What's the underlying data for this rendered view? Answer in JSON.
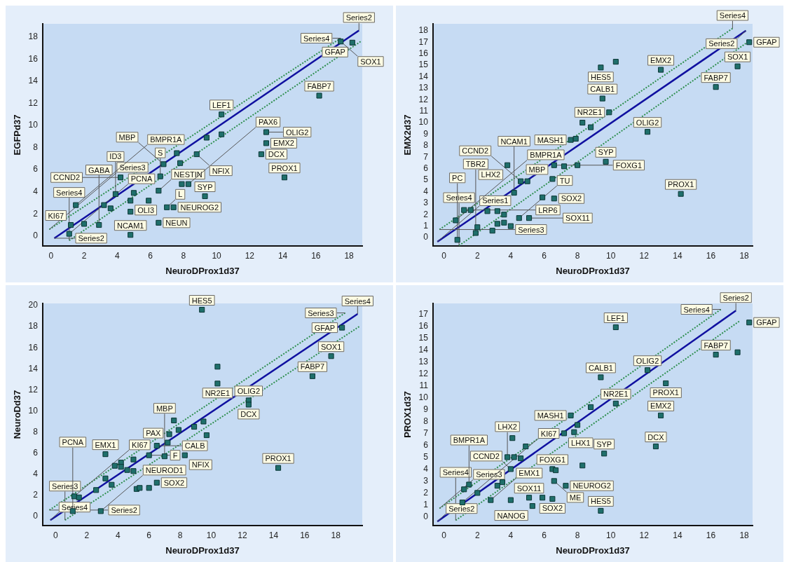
{
  "chart_data": [
    {
      "type": "scatter",
      "xlabel": "NeuroDProx1d37",
      "ylabel": "EGFPd37",
      "xlim": [
        -0.5,
        18.8
      ],
      "ylim": [
        -0.9,
        19.2
      ],
      "xticks": [
        0,
        2,
        4,
        6,
        8,
        10,
        12,
        14,
        16,
        18
      ],
      "yticks": [
        0,
        2,
        4,
        6,
        8,
        10,
        12,
        14,
        16,
        18
      ],
      "series": [
        {
          "type": "scatter",
          "marker": "square",
          "color": "#1f6f6b",
          "x": [
            17.5,
            18.2,
            16.2,
            10.3,
            10.3,
            9.4,
            13.0,
            13.0,
            12.7,
            8.8,
            6.8,
            7.6,
            7.8,
            7.9,
            8.3,
            6.6,
            14.1,
            4.2,
            3.9,
            5.0,
            6.5,
            4.8,
            4.8,
            5.9,
            7.0,
            7.4,
            9.3,
            1.5,
            3.2,
            3.6,
            2.9,
            1.2,
            2.0,
            6.5,
            4.8,
            1.1
          ],
          "values": [
            17.6,
            17.5,
            12.7,
            11.0,
            9.2,
            8.9,
            9.4,
            8.4,
            7.4,
            7.4,
            6.5,
            7.5,
            6.6,
            4.7,
            4.7,
            5.4,
            5.3,
            5.3,
            3.8,
            3.9,
            4.1,
            3.2,
            2.2,
            3.2,
            2.6,
            2.6,
            3.6,
            2.8,
            2.8,
            2.5,
            1.0,
            1.0,
            1.1,
            1.2,
            0.1,
            0.2
          ]
        },
        {
          "type": "line",
          "color": "#1010a0",
          "line_style": "solid",
          "x": [
            0.2,
            18.6
          ],
          "values": [
            -0.2,
            18.6
          ]
        },
        {
          "type": "line",
          "color": "#2f8f4f",
          "line_style": "dotted",
          "x": [
            -0.1,
            17.5
          ],
          "values": [
            0.6,
            17.9
          ]
        },
        {
          "type": "line",
          "color": "#2f8f4f",
          "line_style": "dotted",
          "x": [
            1.1,
            18.7
          ],
          "values": [
            -0.4,
            17.6
          ]
        }
      ],
      "annotations": [
        {
          "text": "SOX1",
          "x": 17.5,
          "y": 17.6
        },
        {
          "text": "GFAP",
          "x": 18.2,
          "y": 17.5
        },
        {
          "text": "FABP7",
          "x": 16.2,
          "y": 12.7
        },
        {
          "text": "LEF1",
          "x": 10.3,
          "y": 11.0
        },
        {
          "text": "OLIG2",
          "x": 13.0,
          "y": 9.4
        },
        {
          "text": "EMX2",
          "x": 13.0,
          "y": 8.4
        },
        {
          "text": "DCX",
          "x": 12.7,
          "y": 7.4
        },
        {
          "text": "NFIX",
          "x": 8.8,
          "y": 7.4
        },
        {
          "text": "MBP",
          "x": 6.8,
          "y": 6.5
        },
        {
          "text": "PAX6",
          "x": 8.3,
          "y": 4.7
        },
        {
          "text": "S",
          "x": 6.6,
          "y": 5.4
        },
        {
          "text": "PROX1",
          "x": 14.1,
          "y": 5.3
        },
        {
          "text": "CCND2",
          "x": 4.2,
          "y": 5.3
        },
        {
          "text": "ID3",
          "x": 3.9,
          "y": 3.8
        },
        {
          "text": "NESTIN",
          "x": 6.5,
          "y": 4.1
        },
        {
          "text": "OLI3",
          "x": 4.8,
          "y": 3.2
        },
        {
          "text": "L",
          "x": 7.0,
          "y": 2.6
        },
        {
          "text": "NEUROG2",
          "x": 7.4,
          "y": 2.6
        },
        {
          "text": "SYP",
          "x": 9.3,
          "y": 3.6
        },
        {
          "text": "BMPR1A",
          "x": 1.5,
          "y": 2.8
        },
        {
          "text": "GABA",
          "x": 2.9,
          "y": 1.0
        },
        {
          "text": "KI67",
          "x": 1.2,
          "y": 1.0
        },
        {
          "text": "NEUN",
          "x": 6.5,
          "y": 1.2
        },
        {
          "text": "NCAM1",
          "x": 4.8,
          "y": 0.1
        },
        {
          "text": "PCNA",
          "x": 1.1,
          "y": 0.2
        },
        {
          "text": "Series3",
          "x": -0.1,
          "y": 0.6
        },
        {
          "text": "Series2",
          "x": 0.2,
          "y": -0.2
        },
        {
          "text": "Series4",
          "x": 1.1,
          "y": -0.4
        },
        {
          "text": "Series4",
          "x": 17.5,
          "y": 17.9
        },
        {
          "text": "Series2",
          "x": 18.6,
          "y": 18.6
        }
      ]
    },
    {
      "type": "scatter",
      "xlabel": "NeuroDProx1d37",
      "ylabel": "EMX2d37",
      "xlim": [
        -0.66,
        18.5
      ],
      "ylim": [
        -0.73,
        18.6
      ],
      "xticks": [
        0,
        2,
        4,
        6,
        8,
        10,
        12,
        14,
        16,
        18
      ],
      "yticks": [
        0,
        1,
        2,
        3,
        4,
        5,
        6,
        7,
        8,
        9,
        10,
        11,
        12,
        13,
        14,
        15,
        16,
        17,
        18
      ],
      "series": [
        {
          "type": "scatter",
          "marker": "square",
          "color": "#1f6f6b",
          "x": [
            18.3,
            17.6,
            16.3,
            9.4,
            10.3,
            13.0,
            9.5,
            9.9,
            12.2,
            8.3,
            8.8,
            7.6,
            7.9,
            9.7,
            8.0,
            6.6,
            7.2,
            3.8,
            4.6,
            5.0,
            6.5,
            4.2,
            5.9,
            6.6,
            14.2,
            5.1,
            4.5,
            1.2,
            1.6,
            0.7,
            2.0,
            3.2,
            3.6,
            3.2,
            3.6,
            4.0,
            2.9,
            2.6,
            1.9,
            0.8
          ],
          "values": [
            17.0,
            14.9,
            13.1,
            14.8,
            15.3,
            14.6,
            12.1,
            10.9,
            9.2,
            10.0,
            9.6,
            8.5,
            8.6,
            6.6,
            6.3,
            6.3,
            6.2,
            6.3,
            4.9,
            4.9,
            5.1,
            3.9,
            3.5,
            3.4,
            3.8,
            1.7,
            1.7,
            2.4,
            2.4,
            1.5,
            0.9,
            2.3,
            2.0,
            1.2,
            1.3,
            1.0,
            0.6,
            2.3,
            0.4,
            -0.2
          ]
        },
        {
          "type": "line",
          "color": "#1010a0",
          "line_style": "solid",
          "x": [
            -0.4,
            18.1
          ],
          "values": [
            -0.36,
            18.0
          ]
        },
        {
          "type": "line",
          "color": "#2f8f4f",
          "line_style": "dotted",
          "x": [
            -0.27,
            17.3
          ],
          "values": [
            0.7,
            18.2
          ]
        },
        {
          "type": "line",
          "color": "#2f8f4f",
          "line_style": "dotted",
          "x": [
            0.9,
            18.1
          ],
          "values": [
            -0.7,
            16.9
          ]
        }
      ],
      "annotations": [
        {
          "text": "GFAP",
          "x": 18.3,
          "y": 17.0
        },
        {
          "text": "SOX1",
          "x": 17.6,
          "y": 14.9
        },
        {
          "text": "FABP7",
          "x": 16.3,
          "y": 13.1
        },
        {
          "text": "HES5",
          "x": 9.4,
          "y": 14.8
        },
        {
          "text": "EMX2",
          "x": 13.0,
          "y": 14.6
        },
        {
          "text": "CALB1",
          "x": 9.5,
          "y": 12.1
        },
        {
          "text": "NR2E1",
          "x": 9.9,
          "y": 10.9
        },
        {
          "text": "OLIG2",
          "x": 12.2,
          "y": 9.2
        },
        {
          "text": "MASH1",
          "x": 7.6,
          "y": 8.5
        },
        {
          "text": "SYP",
          "x": 9.7,
          "y": 6.6
        },
        {
          "text": "FOXG1",
          "x": 6.6,
          "y": 6.3
        },
        {
          "text": "LHX2",
          "x": 3.8,
          "y": 6.3
        },
        {
          "text": "CCND2",
          "x": 4.6,
          "y": 4.9
        },
        {
          "text": "MBP",
          "x": 6.5,
          "y": 5.1
        },
        {
          "text": "NCAM1",
          "x": 4.2,
          "y": 3.9
        },
        {
          "text": "SOX2",
          "x": 6.6,
          "y": 3.4
        },
        {
          "text": "PROX1",
          "x": 14.2,
          "y": 3.8
        },
        {
          "text": "SOX11",
          "x": 5.1,
          "y": 1.7
        },
        {
          "text": "TU",
          "x": 4.5,
          "y": 1.7
        },
        {
          "text": "LRP6",
          "x": 1.2,
          "y": 2.4
        },
        {
          "text": "BMPR1A",
          "x": 0.7,
          "y": 1.5
        },
        {
          "text": "TBR2",
          "x": 1.9,
          "y": 0.4
        },
        {
          "text": "PC",
          "x": 0.8,
          "y": -0.2
        },
        {
          "text": "Series1",
          "x": -0.4,
          "y": -0.36
        },
        {
          "text": "Series3",
          "x": -0.27,
          "y": 0.7
        },
        {
          "text": "Series4",
          "x": 0.9,
          "y": -0.7
        },
        {
          "text": "Series4",
          "x": 17.3,
          "y": 18.2
        },
        {
          "text": "Series2",
          "x": 18.1,
          "y": 18.0
        }
      ]
    },
    {
      "type": "scatter",
      "xlabel": "NeuroDProx1d37",
      "ylabel": "NeuroDd37",
      "xlim": [
        -0.83,
        19.7
      ],
      "ylim": [
        -0.87,
        20.2
      ],
      "xticks": [
        0,
        2,
        4,
        6,
        8,
        10,
        12,
        14,
        16,
        18
      ],
      "yticks": [
        0,
        2,
        4,
        6,
        8,
        10,
        12,
        14,
        16,
        18,
        20
      ],
      "series": [
        {
          "type": "scatter",
          "marker": "square",
          "color": "#1f6f6b",
          "x": [
            9.4,
            18.4,
            17.7,
            16.5,
            10.4,
            10.4,
            12.4,
            12.4,
            7.6,
            7.9,
            8.9,
            9.5,
            9.7,
            7.3,
            8.3,
            6.5,
            7.2,
            7.0,
            6.0,
            3.2,
            3.8,
            4.2,
            4.2,
            5.0,
            4.6,
            5.0,
            14.3,
            6.5,
            5.2,
            5.4,
            6.0,
            3.2,
            3.6,
            2.6,
            1.2,
            1.5,
            1.1,
            2.9
          ],
          "values": [
            19.6,
            17.9,
            15.2,
            13.3,
            14.2,
            12.6,
            11.0,
            10.6,
            9.1,
            8.2,
            8.5,
            9.0,
            7.7,
            7.8,
            5.8,
            6.7,
            7.0,
            5.7,
            5.8,
            5.9,
            4.8,
            5.1,
            4.7,
            5.4,
            4.4,
            4.3,
            4.6,
            3.2,
            2.6,
            2.7,
            2.7,
            3.6,
            3.0,
            2.5,
            1.9,
            1.8,
            0.5,
            0.5
          ]
        },
        {
          "type": "line",
          "color": "#1010a0",
          "line_style": "solid",
          "x": [
            -0.34,
            19.4
          ],
          "values": [
            -0.35,
            19.2
          ]
        },
        {
          "type": "line",
          "color": "#2f8f4f",
          "line_style": "dotted",
          "x": [
            -0.4,
            18.6
          ],
          "values": [
            0.6,
            19.3
          ]
        },
        {
          "type": "line",
          "color": "#2f8f4f",
          "line_style": "dotted",
          "x": [
            0.6,
            19.5
          ],
          "values": [
            -0.35,
            18.0
          ]
        }
      ],
      "annotations": [
        {
          "text": "HES5",
          "x": 9.4,
          "y": 19.6
        },
        {
          "text": "GFAP",
          "x": 18.4,
          "y": 17.9
        },
        {
          "text": "SOX1",
          "x": 17.7,
          "y": 15.2
        },
        {
          "text": "FABP7",
          "x": 16.5,
          "y": 13.3
        },
        {
          "text": "NR2E1",
          "x": 10.4,
          "y": 12.6
        },
        {
          "text": "OLIG2",
          "x": 12.4,
          "y": 11.0
        },
        {
          "text": "DCX",
          "x": 12.4,
          "y": 10.6
        },
        {
          "text": "NFIX",
          "x": 8.3,
          "y": 5.8
        },
        {
          "text": "CALB",
          "x": 6.5,
          "y": 6.7
        },
        {
          "text": "PAX",
          "x": 7.2,
          "y": 7.0
        },
        {
          "text": "MBP",
          "x": 7.0,
          "y": 5.7
        },
        {
          "text": "F",
          "x": 6.0,
          "y": 5.8
        },
        {
          "text": "EMX1",
          "x": 3.2,
          "y": 5.9
        },
        {
          "text": "PROX1",
          "x": 14.3,
          "y": 4.6
        },
        {
          "text": "SOX2",
          "x": 6.5,
          "y": 3.2
        },
        {
          "text": "KI67",
          "x": 1.2,
          "y": 1.9
        },
        {
          "text": "PCNA",
          "x": 1.1,
          "y": 0.5
        },
        {
          "text": "NEUROD1",
          "x": 2.9,
          "y": 0.5
        },
        {
          "text": "Series4",
          "x": -0.34,
          "y": -0.35
        },
        {
          "text": "Series2",
          "x": -0.4,
          "y": 0.6
        },
        {
          "text": "Series3",
          "x": 0.6,
          "y": -0.35
        },
        {
          "text": "Series3",
          "x": 18.6,
          "y": 19.3
        },
        {
          "text": "Series4",
          "x": 19.4,
          "y": 19.2
        }
      ]
    },
    {
      "type": "scatter",
      "xlabel": "NeuroDProx1d37",
      "ylabel": "PROX1d37",
      "xlim": [
        -0.66,
        18.5
      ],
      "ylim": [
        -0.74,
        17.9
      ],
      "xticks": [
        0,
        2,
        4,
        6,
        8,
        10,
        12,
        14,
        16,
        18
      ],
      "yticks": [
        0,
        1,
        2,
        3,
        4,
        5,
        6,
        7,
        8,
        9,
        10,
        11,
        12,
        13,
        14,
        15,
        16,
        17
      ],
      "series": [
        {
          "type": "scatter",
          "marker": "square",
          "color": "#1f6f6b",
          "x": [
            18.3,
            16.3,
            17.6,
            10.3,
            9.4,
            12.2,
            13.3,
            10.3,
            13.0,
            7.6,
            8.8,
            7.2,
            7.8,
            8.0,
            12.7,
            9.6,
            4.1,
            4.9,
            3.8,
            4.2,
            4.6,
            6.5,
            6.7,
            8.3,
            4.0,
            6.6,
            7.3,
            3.5,
            3.2,
            1.5,
            1.2,
            2.0,
            1.1,
            2.8,
            4.0,
            5.3,
            5.1,
            5.9,
            6.5,
            9.4
          ],
          "values": [
            16.3,
            13.6,
            13.8,
            15.9,
            11.7,
            12.3,
            11.2,
            9.5,
            8.5,
            8.5,
            9.2,
            7.0,
            7.1,
            7.7,
            5.9,
            5.3,
            6.6,
            5.9,
            5.0,
            5.0,
            4.9,
            4.0,
            3.9,
            4.3,
            4.0,
            3.0,
            2.6,
            2.9,
            2.6,
            2.7,
            2.3,
            2.0,
            1.2,
            1.4,
            1.4,
            0.9,
            1.6,
            1.6,
            1.5,
            0.5
          ]
        },
        {
          "type": "line",
          "color": "#1010a0",
          "line_style": "solid",
          "x": [
            -0.4,
            17.5
          ],
          "values": [
            -0.4,
            17.3
          ]
        },
        {
          "type": "line",
          "color": "#2f8f4f",
          "line_style": "dotted",
          "x": [
            -0.27,
            16.6
          ],
          "values": [
            0.7,
            17.4
          ]
        },
        {
          "type": "line",
          "color": "#2f8f4f",
          "line_style": "dotted",
          "x": [
            0.7,
            17.7
          ],
          "values": [
            -0.3,
            16.4
          ]
        }
      ],
      "annotations": [
        {
          "text": "GFAP",
          "x": 18.3,
          "y": 16.3
        },
        {
          "text": "FABP7",
          "x": 16.3,
          "y": 13.6
        },
        {
          "text": "LEF1",
          "x": 10.3,
          "y": 15.9
        },
        {
          "text": "CALB1",
          "x": 9.4,
          "y": 11.7
        },
        {
          "text": "OLIG2",
          "x": 12.2,
          "y": 12.3
        },
        {
          "text": "PROX1",
          "x": 13.3,
          "y": 11.2
        },
        {
          "text": "NR2E1",
          "x": 10.3,
          "y": 9.5
        },
        {
          "text": "EMX2",
          "x": 13.0,
          "y": 8.5
        },
        {
          "text": "MASH1",
          "x": 7.6,
          "y": 8.5
        },
        {
          "text": "LHX1",
          "x": 7.2,
          "y": 7.0
        },
        {
          "text": "DCX",
          "x": 12.7,
          "y": 5.9
        },
        {
          "text": "SYP",
          "x": 9.6,
          "y": 5.3
        },
        {
          "text": "LHX2",
          "x": 3.8,
          "y": 5.0
        },
        {
          "text": "FOXG1",
          "x": 6.5,
          "y": 4.0
        },
        {
          "text": "CCND2",
          "x": 4.0,
          "y": 4.0
        },
        {
          "text": "ME",
          "x": 6.6,
          "y": 3.0
        },
        {
          "text": "NEUROG2",
          "x": 7.3,
          "y": 2.6
        },
        {
          "text": "BMPR1A",
          "x": 1.5,
          "y": 2.7
        },
        {
          "text": "KI67",
          "x": 1.1,
          "y": 1.2
        },
        {
          "text": "EMX1",
          "x": 2.8,
          "y": 1.4
        },
        {
          "text": "NANOG",
          "x": 5.3,
          "y": 0.9
        },
        {
          "text": "SOX11",
          "x": 5.1,
          "y": 1.6
        },
        {
          "text": "SOX2",
          "x": 6.5,
          "y": 1.5
        },
        {
          "text": "HES5",
          "x": 9.4,
          "y": 0.5
        },
        {
          "text": "Series3",
          "x": -0.27,
          "y": 0.7
        },
        {
          "text": "Series2",
          "x": -0.4,
          "y": -0.4
        },
        {
          "text": "Series4",
          "x": 0.7,
          "y": -0.3
        },
        {
          "text": "Series4",
          "x": 16.6,
          "y": 17.4
        },
        {
          "text": "Series2",
          "x": 17.5,
          "y": 17.3
        }
      ]
    }
  ]
}
